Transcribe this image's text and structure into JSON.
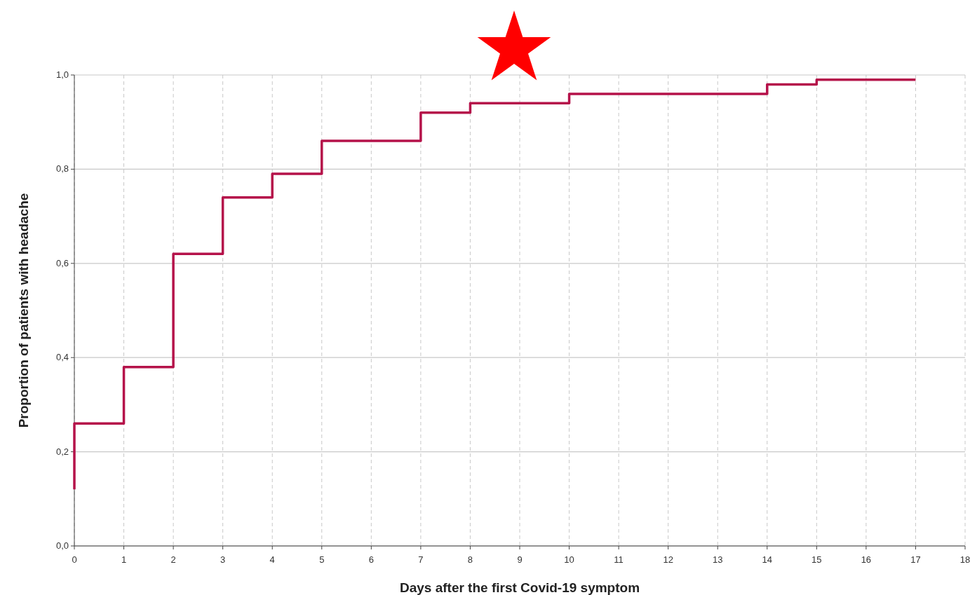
{
  "chart_data": {
    "type": "step",
    "xlabel": "Days after the first Covid-19 symptom",
    "ylabel": "Proportion of patients with headache",
    "x": [
      0,
      0,
      1,
      2,
      3,
      4,
      5,
      7,
      8,
      10,
      14,
      15,
      17
    ],
    "series": [
      {
        "color": "#b5124a",
        "values": [
          0.12,
          0.26,
          0.38,
          0.62,
          0.74,
          0.79,
          0.86,
          0.92,
          0.94,
          0.96,
          0.98,
          0.99,
          0.99
        ]
      }
    ],
    "xlim": [
      0,
      18
    ],
    "xticks": [
      0,
      1,
      2,
      3,
      4,
      5,
      6,
      7,
      8,
      9,
      10,
      11,
      12,
      13,
      14,
      15,
      16,
      17,
      18
    ],
    "ylim": [
      0,
      1
    ],
    "yticks": [
      {
        "value": 0,
        "label": "0,0"
      },
      {
        "value": 0.2,
        "label": "0,2"
      },
      {
        "value": 0.4,
        "label": "0,4"
      },
      {
        "value": 0.6,
        "label": "0,6"
      },
      {
        "value": 0.8,
        "label": "0,8"
      },
      {
        "value": 1,
        "label": "1,0"
      }
    ],
    "grid": true,
    "marker": "none",
    "line_style": "solid"
  }
}
